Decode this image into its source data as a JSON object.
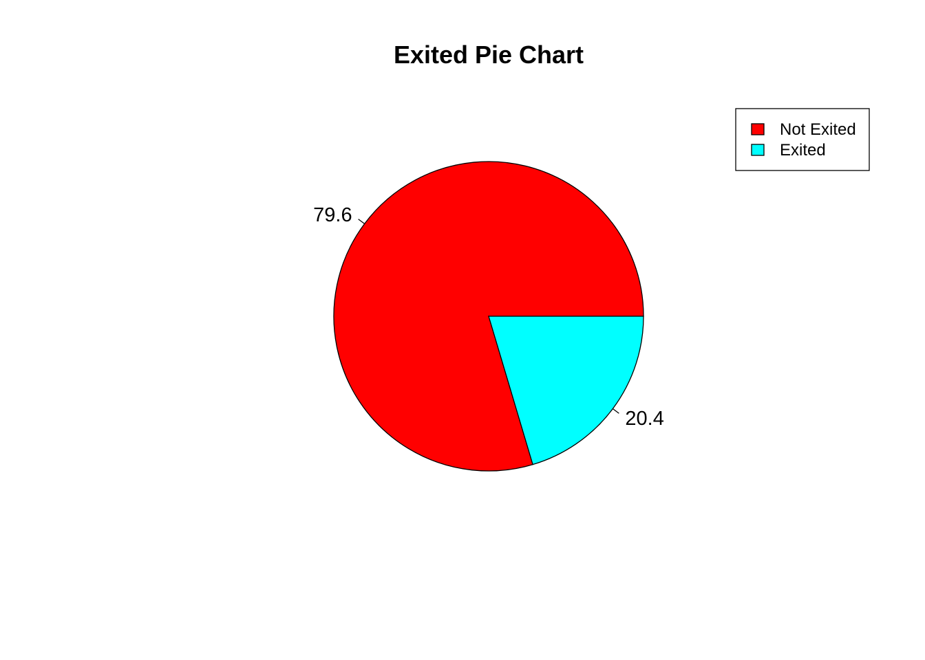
{
  "chart_data": {
    "type": "pie",
    "title": "Exited Pie Chart",
    "slices": [
      {
        "name": "Not Exited",
        "value": 79.6,
        "label": "79.6",
        "color": "#FF0000"
      },
      {
        "name": "Exited",
        "value": 20.4,
        "label": "20.4",
        "color": "#00FFFF"
      }
    ],
    "start_angle_deg": 0,
    "direction": "counterclockwise",
    "legend_position": "top-right",
    "legend_entries": [
      "Not Exited",
      "Exited"
    ]
  }
}
